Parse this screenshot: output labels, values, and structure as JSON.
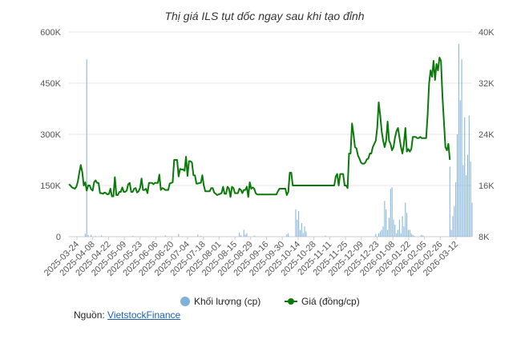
{
  "title": "Thị giá ILS tụt dốc ngay sau khi tạo đỉnh",
  "source": {
    "label": "Nguồn:",
    "link_text": "VietstockFinance"
  },
  "legend": {
    "volume": "Khối lượng (cp)",
    "price": "Giá (đồng/cp)"
  },
  "colors": {
    "volume": "#7fb1dc",
    "price": "#0a7a0a",
    "grid": "#e6e6e6",
    "axis": "#cccccc"
  },
  "chart_data": {
    "type": "bar+line",
    "x_tick_labels": [
      "2025-03-24",
      "2025-04-08",
      "2025-04-22",
      "2025-05-09",
      "2025-05-23",
      "2025-06-06",
      "2025-06-20",
      "2025-07-04",
      "2025-07-18",
      "2025-08-01",
      "2025-08-15",
      "2025-08-29",
      "2025-09-16",
      "2025-09-30",
      "2025-10-14",
      "2025-10-28",
      "2025-11-11",
      "2025-11-25",
      "2025-12-09",
      "2025-12-23",
      "2026-01-08",
      "2026-01-22",
      "2026-02-05",
      "2026-02-26",
      "2026-03-12"
    ],
    "y_left": {
      "ticks": [
        "0",
        "150K",
        "300K",
        "450K",
        "600K"
      ],
      "range": [
        0,
        600000
      ]
    },
    "y_right": {
      "ticks": [
        "8K",
        "16K",
        "24K",
        "32K",
        "40K"
      ],
      "range": [
        8000,
        40000
      ]
    },
    "n_points": 246,
    "volume_series": {
      "name": "Khối lượng (cp)",
      "values": [
        0,
        0,
        0,
        0,
        0,
        0,
        0,
        0,
        0,
        0,
        0,
        9000,
        520000,
        5000,
        0,
        6000,
        0,
        0,
        2000,
        0,
        0,
        0,
        3000,
        0,
        0,
        0,
        0,
        0,
        0,
        0,
        0,
        0,
        0,
        0,
        0,
        0,
        0,
        0,
        0,
        0,
        0,
        0,
        0,
        2000,
        0,
        0,
        0,
        0,
        0,
        0,
        0,
        0,
        0,
        0,
        0,
        0,
        0,
        0,
        0,
        0,
        0,
        0,
        0,
        0,
        0,
        4000,
        0,
        0,
        0,
        0,
        0,
        0,
        0,
        0,
        8000,
        0,
        0,
        0,
        0,
        0,
        0,
        0,
        0,
        0,
        0,
        0,
        0,
        6000,
        0,
        2000,
        0,
        0,
        0,
        0,
        0,
        0,
        0,
        0,
        0,
        0,
        0,
        0,
        0,
        0,
        0,
        0,
        0,
        0,
        0,
        0,
        0,
        0,
        0,
        0,
        0,
        12000,
        4000,
        0,
        20000,
        6000,
        10000,
        0,
        0,
        0,
        0,
        3000,
        0,
        0,
        0,
        0,
        0,
        0,
        0,
        0,
        0,
        0,
        0,
        0,
        0,
        0,
        0,
        0,
        0,
        0,
        0,
        0,
        0,
        7000,
        10000,
        0,
        0,
        0,
        0,
        80000,
        50000,
        75000,
        20000,
        40000,
        10000,
        30000,
        15000,
        0,
        0,
        0,
        0,
        0,
        0,
        0,
        0,
        0,
        0,
        0,
        0,
        3000,
        0,
        0,
        0,
        0,
        0,
        0,
        0,
        0,
        0,
        0,
        0,
        0,
        0,
        0,
        0,
        0,
        0,
        0,
        0,
        0,
        0,
        0,
        0,
        0,
        0,
        0,
        0,
        0,
        0,
        0,
        0,
        0,
        0,
        8000,
        0,
        10000,
        15000,
        20000,
        30000,
        105000,
        80000,
        20000,
        55000,
        140000,
        145000,
        50000,
        35000,
        10000,
        20000,
        50000,
        10000,
        60000,
        30000,
        100000,
        70000,
        20000,
        20000,
        10000,
        5000,
        2000,
        0,
        0,
        0,
        2000,
        5000,
        3000,
        0,
        0,
        0,
        0,
        0,
        0,
        0,
        0,
        0,
        0,
        0,
        0,
        0,
        0,
        0,
        0,
        0
      ],
      "tail_values": [
        205000,
        20000,
        60000,
        90000,
        160000,
        300000,
        565000,
        400000,
        520000,
        210000,
        350000,
        180000,
        240000,
        355000,
        220000,
        100000
      ]
    },
    "price_series": {
      "name": "Giá (đồng/cp)",
      "values": [
        16200,
        16000,
        15700,
        15600,
        15500,
        15800,
        16600,
        18000,
        19200,
        18100,
        16000,
        16500,
        15200,
        16000,
        16000,
        15400,
        15200,
        16500,
        16800,
        16400,
        16400,
        14800,
        14800,
        14700,
        14900,
        14800,
        14600,
        14700,
        15500,
        14300,
        14300,
        17300,
        14500,
        14500,
        15000,
        15000,
        15700,
        15000,
        15000,
        15200,
        16200,
        16400,
        15000,
        15000,
        15500,
        15600,
        14900,
        15100,
        15600,
        17100,
        15300,
        15300,
        15500,
        14800,
        16400,
        16400,
        16400,
        16200,
        16400,
        16400,
        16400,
        17700,
        15300,
        15600,
        15500,
        15300,
        15300,
        15300,
        16300,
        16400,
        16500,
        20000,
        20000,
        20000,
        17400,
        18600,
        18500,
        18500,
        18300,
        20500,
        17500,
        19800,
        19800,
        19600,
        17600,
        17600,
        16300,
        16300,
        16400,
        16400,
        17600,
        16000,
        15100,
        15100,
        15100,
        15100,
        15600,
        15600,
        14900,
        14700,
        14500,
        14600,
        14700,
        14800,
        15800,
        14700,
        14700,
        15800,
        15500,
        14200,
        15800,
        15600,
        14800,
        14800,
        14800,
        15500,
        15300,
        14800,
        15300,
        15300,
        15800,
        14200,
        16500,
        15500,
        15700,
        15500,
        14800,
        14600,
        14600,
        14600,
        14600,
        14600,
        14600,
        14600,
        14600,
        14600,
        14600,
        14600,
        14600,
        14600,
        14600,
        15100,
        15500,
        15500,
        15500,
        15500,
        15500,
        14500,
        15000,
        18000,
        18000,
        16000,
        16000,
        16000,
        16000,
        16000,
        16000,
        16000,
        16000,
        16000,
        16000,
        16000,
        16000,
        16000,
        16000,
        16000,
        16000,
        16000,
        16000,
        16000,
        16000,
        16000,
        16000,
        16000,
        16000,
        16000,
        16000,
        16000,
        16000,
        16000,
        17400,
        17800,
        16000,
        17800,
        17800,
        17800,
        16000,
        16000,
        15600,
        21000,
        21000,
        25700,
        24000,
        22000,
        21800,
        20700,
        20200,
        19600,
        19400,
        19400,
        19600,
        20100,
        20200,
        21000,
        21000,
        22000,
        22500,
        23000,
        25000,
        29000,
        27000,
        24500,
        23000,
        22000,
        23000,
        26000,
        23000,
        22500,
        21500,
        22000,
        23500,
        24500,
        25000,
        23500,
        22000,
        21000,
        22500,
        25000,
        21300,
        21700,
        21300,
        21700,
        23600,
        23600,
        23600,
        23400,
        23400,
        23600,
        23400,
        23400,
        23400,
        23400
      ],
      "tail_values": [
        27000,
        32000,
        34000,
        33000,
        35500,
        32500,
        35000,
        34000,
        36000,
        35500,
        30000,
        26000,
        22000,
        21500,
        22500,
        20000
      ]
    }
  }
}
